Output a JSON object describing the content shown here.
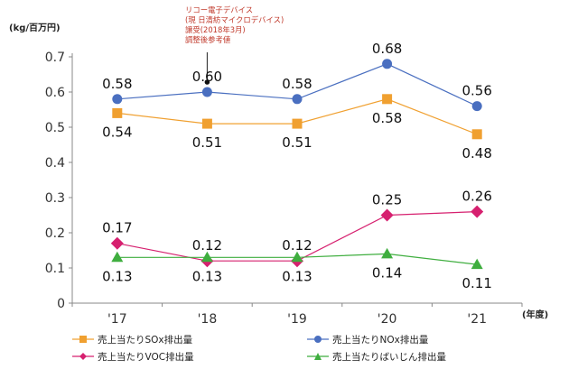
{
  "chart_data": {
    "type": "line",
    "ylabel": "(kg/百万円)",
    "xlabel": "(年度)",
    "categories": [
      "'17",
      "'18",
      "'19",
      "'20",
      "'21"
    ],
    "yticks": [
      "0",
      "0.1",
      "0.2",
      "0.3",
      "0.4",
      "0.5",
      "0.6",
      "0.7"
    ],
    "ylim": [
      0,
      0.7
    ],
    "grid": false,
    "legend_position": "bottom",
    "annotation": {
      "lines": [
        "リコー電子デバイス",
        "(現 日清紡マイクロデバイス)",
        "譲受(2018年3月)",
        "調整後参考値"
      ],
      "points_to": "'18"
    },
    "series": [
      {
        "name": "売上当たりSOx排出量",
        "values": [
          0.54,
          0.51,
          0.51,
          0.58,
          0.48
        ],
        "labels": [
          "0.54",
          "0.51",
          "0.51",
          "0.58",
          "0.48"
        ],
        "color": "#f0a030",
        "marker": "square",
        "label_pos": "below"
      },
      {
        "name": "売上当たりNOx排出量",
        "values": [
          0.58,
          0.6,
          0.58,
          0.68,
          0.56
        ],
        "labels": [
          "0.58",
          "0.60",
          "0.58",
          "0.68",
          "0.56"
        ],
        "color": "#4a6fc0",
        "marker": "circle",
        "label_pos": "above"
      },
      {
        "name": "売上当たりVOC排出量",
        "values": [
          0.17,
          0.12,
          0.12,
          0.25,
          0.26
        ],
        "labels": [
          "0.17",
          "0.12",
          "0.12",
          "0.25",
          "0.26"
        ],
        "color": "#d6206f",
        "marker": "diamond",
        "label_pos": "above"
      },
      {
        "name": "売上当たりばいじん排出量",
        "values": [
          0.13,
          0.13,
          0.13,
          0.14,
          0.11
        ],
        "labels": [
          "0.13",
          "0.13",
          "0.13",
          "0.14",
          "0.11"
        ],
        "color": "#3fae3f",
        "marker": "triangle",
        "label_pos": "below"
      }
    ]
  }
}
